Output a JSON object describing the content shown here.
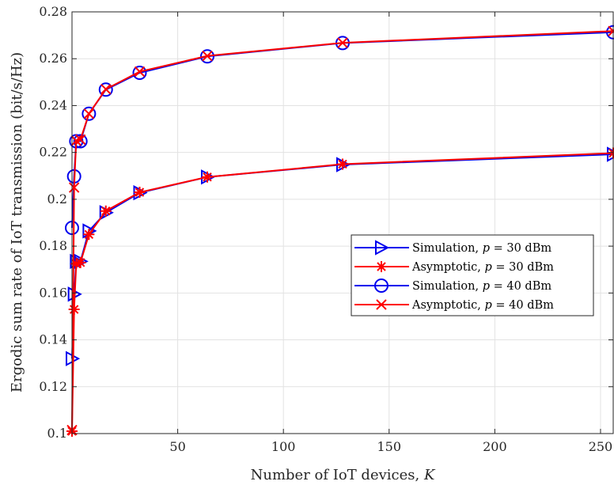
{
  "chart_data": {
    "type": "line",
    "xlabel": "Number of IoT devices, K",
    "ylabel": "Ergodic sum rate of IoT transmission (bit/s/Hz)",
    "xlim": [
      0,
      256
    ],
    "ylim": [
      0.1,
      0.28
    ],
    "xticks": [
      50,
      100,
      150,
      200,
      250
    ],
    "xtick_labels": [
      "50",
      "100",
      "150",
      "200",
      "250"
    ],
    "yticks": [
      0.1,
      0.12,
      0.14,
      0.16,
      0.18,
      0.2,
      0.22,
      0.24,
      0.26,
      0.28
    ],
    "ytick_labels": [
      "0.1",
      "0.12",
      "0.14",
      "0.16",
      "0.18",
      "0.2",
      "0.22",
      "0.24",
      "0.26",
      "0.28"
    ],
    "grid": true,
    "legend_position": "center-right",
    "series": [
      {
        "name": "Simulation, p = 30 dBm",
        "marker": "triangle-right",
        "color": "#0000ee",
        "x": [
          0,
          1,
          2,
          4,
          8,
          16,
          32,
          64,
          128,
          256
        ],
        "y": [
          0.132,
          0.1595,
          0.1735,
          0.1735,
          0.1865,
          0.1943,
          0.2028,
          0.2095,
          0.2148,
          0.2192
        ]
      },
      {
        "name": "Asymptotic, p = 30 dBm",
        "marker": "asterisk",
        "color": "#ff0000",
        "x": [
          0,
          1,
          2,
          4,
          8,
          16,
          32,
          64,
          128,
          256
        ],
        "y": [
          0.101,
          0.153,
          0.1725,
          0.173,
          0.185,
          0.195,
          0.203,
          0.2095,
          0.215,
          0.2197
        ]
      },
      {
        "name": "Simulation, p = 40 dBm",
        "marker": "circle",
        "color": "#0000ee",
        "x": [
          0,
          1,
          2,
          4,
          8,
          16,
          32,
          64,
          128,
          256
        ],
        "y": [
          0.1878,
          0.2098,
          0.2248,
          0.2248,
          0.2365,
          0.2468,
          0.254,
          0.261,
          0.2667,
          0.2713
        ]
      },
      {
        "name": "Asymptotic, p = 40 dBm",
        "marker": "x",
        "color": "#ff0000",
        "x": [
          0,
          1,
          2,
          4,
          8,
          16,
          32,
          64,
          128,
          256
        ],
        "y": [
          0.1015,
          0.205,
          0.225,
          0.2255,
          0.2365,
          0.247,
          0.2545,
          0.2612,
          0.2668,
          0.2718
        ]
      }
    ]
  },
  "legend": [
    {
      "prefix": "Simulation, ",
      "var": "p",
      "suffix": " = 30 dBm"
    },
    {
      "prefix": "Asymptotic, ",
      "var": "p",
      "suffix": " = 30 dBm"
    },
    {
      "prefix": "Simulation, ",
      "var": "p",
      "suffix": " = 40 dBm"
    },
    {
      "prefix": "Asymptotic, ",
      "var": "p",
      "suffix": " = 40 dBm"
    }
  ],
  "axis_text": {
    "xlabel_prefix": "Number of IoT devices, ",
    "xlabel_var": "K"
  }
}
